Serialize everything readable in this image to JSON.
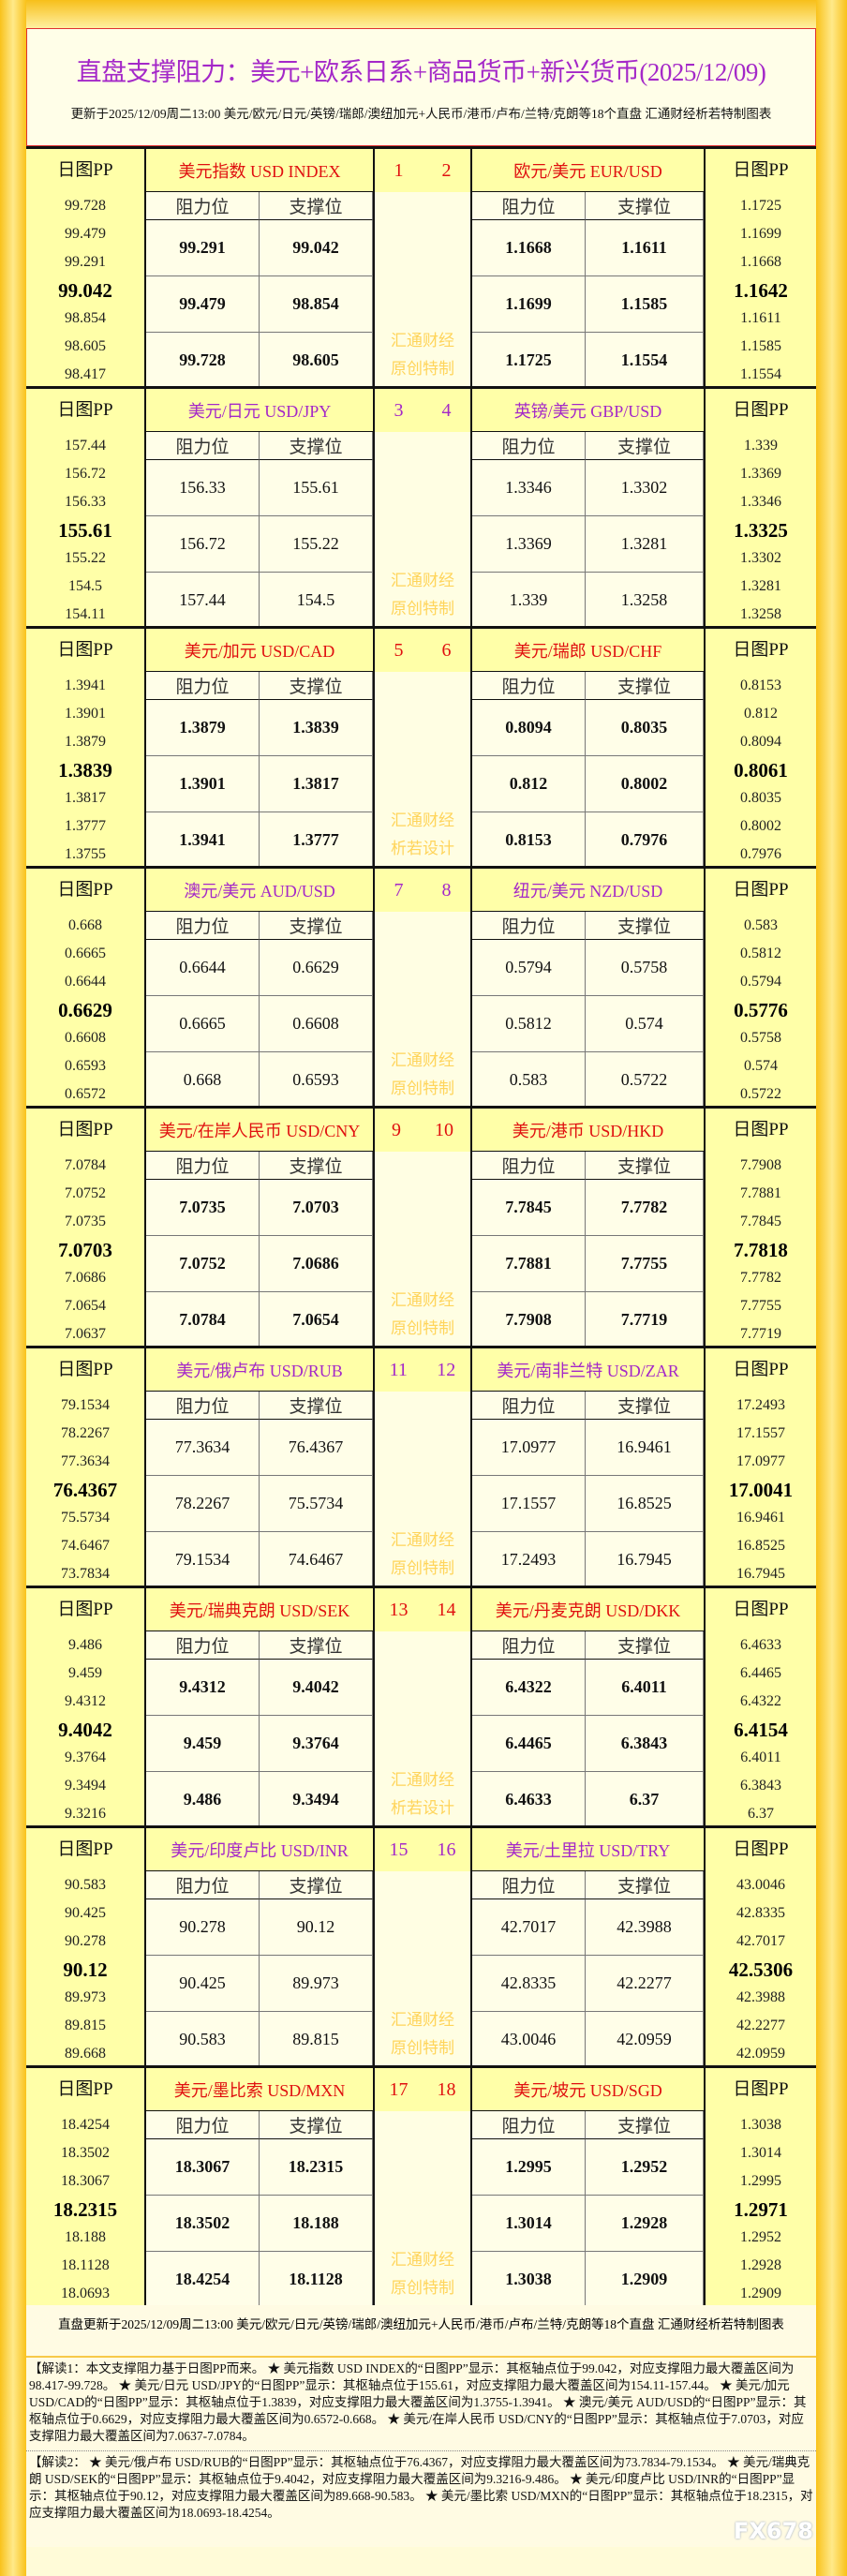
{
  "colors": {
    "red": "#E01010",
    "purple": "#A428C8",
    "watermark": "#FFD45A"
  },
  "title": "直盘支撑阻力：美元+欧系日系+商品货币+新兴货币(2025/12/09)",
  "subtitle": "更新于2025/12/09周二13:00 美元/欧元/日元/英镑/瑞郎/澳纽加元+人民币/港币/卢布/兰特/克朗等18个直盘 汇通财经析若特制图表",
  "labels": {
    "pp": "日图PP",
    "res": "阻力位",
    "sup": "支撑位"
  },
  "blocks": [
    {
      "color": "red",
      "bold": true,
      "wm": [
        "汇通财经",
        "原创特制"
      ],
      "left": {
        "name": "美元指数 USD INDEX",
        "num": "1",
        "pp": [
          "99.728",
          "99.479",
          "99.291",
          "99.042",
          "98.854",
          "98.605",
          "98.417"
        ],
        "rows": [
          [
            "99.291",
            "99.042"
          ],
          [
            "99.479",
            "98.854"
          ],
          [
            "99.728",
            "98.605"
          ]
        ]
      },
      "right": {
        "name": "欧元/美元 EUR/USD",
        "num": "2",
        "pp": [
          "1.1725",
          "1.1699",
          "1.1668",
          "1.1642",
          "1.1611",
          "1.1585",
          "1.1554"
        ],
        "rows": [
          [
            "1.1668",
            "1.1611"
          ],
          [
            "1.1699",
            "1.1585"
          ],
          [
            "1.1725",
            "1.1554"
          ]
        ]
      }
    },
    {
      "color": "purple",
      "bold": false,
      "wm": [
        "汇通财经",
        "原创特制"
      ],
      "left": {
        "name": "美元/日元 USD/JPY",
        "num": "3",
        "pp": [
          "157.44",
          "156.72",
          "156.33",
          "155.61",
          "155.22",
          "154.5",
          "154.11"
        ],
        "rows": [
          [
            "156.33",
            "155.61"
          ],
          [
            "156.72",
            "155.22"
          ],
          [
            "157.44",
            "154.5"
          ]
        ]
      },
      "right": {
        "name": "英镑/美元 GBP/USD",
        "num": "4",
        "pp": [
          "1.339",
          "1.3369",
          "1.3346",
          "1.3325",
          "1.3302",
          "1.3281",
          "1.3258"
        ],
        "rows": [
          [
            "1.3346",
            "1.3302"
          ],
          [
            "1.3369",
            "1.3281"
          ],
          [
            "1.339",
            "1.3258"
          ]
        ]
      }
    },
    {
      "color": "red",
      "bold": true,
      "wm": [
        "汇通财经",
        "析若设计"
      ],
      "left": {
        "name": "美元/加元 USD/CAD",
        "num": "5",
        "pp": [
          "1.3941",
          "1.3901",
          "1.3879",
          "1.3839",
          "1.3817",
          "1.3777",
          "1.3755"
        ],
        "rows": [
          [
            "1.3879",
            "1.3839"
          ],
          [
            "1.3901",
            "1.3817"
          ],
          [
            "1.3941",
            "1.3777"
          ]
        ]
      },
      "right": {
        "name": "美元/瑞郎 USD/CHF",
        "num": "6",
        "pp": [
          "0.8153",
          "0.812",
          "0.8094",
          "0.8061",
          "0.8035",
          "0.8002",
          "0.7976"
        ],
        "rows": [
          [
            "0.8094",
            "0.8035"
          ],
          [
            "0.812",
            "0.8002"
          ],
          [
            "0.8153",
            "0.7976"
          ]
        ]
      }
    },
    {
      "color": "purple",
      "bold": false,
      "wm": [
        "汇通财经",
        "原创特制"
      ],
      "left": {
        "name": "澳元/美元 AUD/USD",
        "num": "7",
        "pp": [
          "0.668",
          "0.6665",
          "0.6644",
          "0.6629",
          "0.6608",
          "0.6593",
          "0.6572"
        ],
        "rows": [
          [
            "0.6644",
            "0.6629"
          ],
          [
            "0.6665",
            "0.6608"
          ],
          [
            "0.668",
            "0.6593"
          ]
        ]
      },
      "right": {
        "name": "纽元/美元 NZD/USD",
        "num": "8",
        "pp": [
          "0.583",
          "0.5812",
          "0.5794",
          "0.5776",
          "0.5758",
          "0.574",
          "0.5722"
        ],
        "rows": [
          [
            "0.5794",
            "0.5758"
          ],
          [
            "0.5812",
            "0.574"
          ],
          [
            "0.583",
            "0.5722"
          ]
        ]
      }
    },
    {
      "color": "red",
      "bold": true,
      "wm": [
        "汇通财经",
        "原创特制"
      ],
      "left": {
        "name": "美元/在岸人民币 USD/CNY",
        "num": "9",
        "pp": [
          "7.0784",
          "7.0752",
          "7.0735",
          "7.0703",
          "7.0686",
          "7.0654",
          "7.0637"
        ],
        "rows": [
          [
            "7.0735",
            "7.0703"
          ],
          [
            "7.0752",
            "7.0686"
          ],
          [
            "7.0784",
            "7.0654"
          ]
        ]
      },
      "right": {
        "name": "美元/港币 USD/HKD",
        "num": "10",
        "pp": [
          "7.7908",
          "7.7881",
          "7.7845",
          "7.7818",
          "7.7782",
          "7.7755",
          "7.7719"
        ],
        "rows": [
          [
            "7.7845",
            "7.7782"
          ],
          [
            "7.7881",
            "7.7755"
          ],
          [
            "7.7908",
            "7.7719"
          ]
        ]
      }
    },
    {
      "color": "purple",
      "bold": false,
      "wm": [
        "汇通财经",
        "原创特制"
      ],
      "left": {
        "name": "美元/俄卢布 USD/RUB",
        "num": "11",
        "pp": [
          "79.1534",
          "78.2267",
          "77.3634",
          "76.4367",
          "75.5734",
          "74.6467",
          "73.7834"
        ],
        "rows": [
          [
            "77.3634",
            "76.4367"
          ],
          [
            "78.2267",
            "75.5734"
          ],
          [
            "79.1534",
            "74.6467"
          ]
        ]
      },
      "right": {
        "name": "美元/南非兰特 USD/ZAR",
        "num": "12",
        "pp": [
          "17.2493",
          "17.1557",
          "17.0977",
          "17.0041",
          "16.9461",
          "16.8525",
          "16.7945"
        ],
        "rows": [
          [
            "17.0977",
            "16.9461"
          ],
          [
            "17.1557",
            "16.8525"
          ],
          [
            "17.2493",
            "16.7945"
          ]
        ]
      }
    },
    {
      "color": "red",
      "bold": true,
      "wm": [
        "汇通财经",
        "析若设计"
      ],
      "left": {
        "name": "美元/瑞典克朗 USD/SEK",
        "num": "13",
        "pp": [
          "9.486",
          "9.459",
          "9.4312",
          "9.4042",
          "9.3764",
          "9.3494",
          "9.3216"
        ],
        "rows": [
          [
            "9.4312",
            "9.4042"
          ],
          [
            "9.459",
            "9.3764"
          ],
          [
            "9.486",
            "9.3494"
          ]
        ]
      },
      "right": {
        "name": "美元/丹麦克朗 USD/DKK",
        "num": "14",
        "pp": [
          "6.4633",
          "6.4465",
          "6.4322",
          "6.4154",
          "6.4011",
          "6.3843",
          "6.37"
        ],
        "rows": [
          [
            "6.4322",
            "6.4011"
          ],
          [
            "6.4465",
            "6.3843"
          ],
          [
            "6.4633",
            "6.37"
          ]
        ]
      }
    },
    {
      "color": "purple",
      "bold": false,
      "wm": [
        "汇通财经",
        "原创特制"
      ],
      "left": {
        "name": "美元/印度卢比 USD/INR",
        "num": "15",
        "pp": [
          "90.583",
          "90.425",
          "90.278",
          "90.12",
          "89.973",
          "89.815",
          "89.668"
        ],
        "rows": [
          [
            "90.278",
            "90.12"
          ],
          [
            "90.425",
            "89.973"
          ],
          [
            "90.583",
            "89.815"
          ]
        ]
      },
      "right": {
        "name": "美元/土里拉 USD/TRY",
        "num": "16",
        "pp": [
          "43.0046",
          "42.8335",
          "42.7017",
          "42.5306",
          "42.3988",
          "42.2277",
          "42.0959"
        ],
        "rows": [
          [
            "42.7017",
            "42.3988"
          ],
          [
            "42.8335",
            "42.2277"
          ],
          [
            "43.0046",
            "42.0959"
          ]
        ]
      }
    },
    {
      "color": "red",
      "bold": true,
      "wm": [
        "汇通财经",
        "原创特制"
      ],
      "left": {
        "name": "美元/墨比索 USD/MXN",
        "num": "17",
        "pp": [
          "18.4254",
          "18.3502",
          "18.3067",
          "18.2315",
          "18.188",
          "18.1128",
          "18.0693"
        ],
        "rows": [
          [
            "18.3067",
            "18.2315"
          ],
          [
            "18.3502",
            "18.188"
          ],
          [
            "18.4254",
            "18.1128"
          ]
        ]
      },
      "right": {
        "name": "美元/坡元 USD/SGD",
        "num": "18",
        "pp": [
          "1.3038",
          "1.3014",
          "1.2995",
          "1.2971",
          "1.2952",
          "1.2928",
          "1.2909"
        ],
        "rows": [
          [
            "1.2995",
            "1.2952"
          ],
          [
            "1.3014",
            "1.2928"
          ],
          [
            "1.3038",
            "1.2909"
          ]
        ]
      }
    }
  ],
  "footer": {
    "update": "直盘更新于2025/12/09周二13:00 美元/欧元/日元/英镑/瑞郎/澳纽加元+人民币/港币/卢布/兰特/克朗等18个直盘 汇通财经析若特制图表",
    "note1": "【解读1：本文支撑阻力基于日图PP而来。 ★ 美元指数 USD INDEX的“日图PP”显示：其枢轴点位于99.042，对应支撑阻力最大覆盖区间为98.417-99.728。 ★ 美元/日元 USD/JPY的“日图PP”显示：其枢轴点位于155.61，对应支撑阻力最大覆盖区间为154.11-157.44。 ★ 美元/加元 USD/CAD的“日图PP”显示：其枢轴点位于1.3839，对应支撑阻力最大覆盖区间为1.3755-1.3941。 ★ 澳元/美元 AUD/USD的“日图PP”显示：其枢轴点位于0.6629，对应支撑阻力最大覆盖区间为0.6572-0.668。 ★ 美元/在岸人民币 USD/CNY的“日图PP”显示：其枢轴点位于7.0703，对应支撑阻力最大覆盖区间为7.0637-7.0784。",
    "note2": "【解读2： ★ 美元/俄卢布 USD/RUB的“日图PP”显示：其枢轴点位于76.4367，对应支撑阻力最大覆盖区间为73.7834-79.1534。 ★ 美元/瑞典克朗 USD/SEK的“日图PP”显示：其枢轴点位于9.4042，对应支撑阻力最大覆盖区间为9.3216-9.486。 ★ 美元/印度卢比 USD/INR的“日图PP”显示：其枢轴点位于90.12，对应支撑阻力最大覆盖区间为89.668-90.583。 ★ 美元/墨比索 USD/MXN的“日图PP”显示：其枢轴点位于18.2315，对应支撑阻力最大覆盖区间为18.0693-18.4254。"
  },
  "watermark_logo": "FX678"
}
